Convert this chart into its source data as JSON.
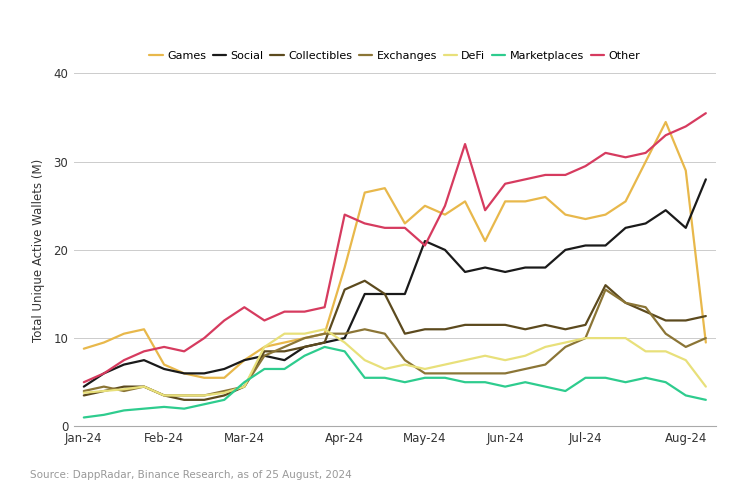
{
  "ylabel": "Total Unique Active Wallets (M)",
  "source_text": "Source: DappRadar, Binance Research, as of 25 August, 2024",
  "x_labels": [
    "Jan-24",
    "Feb-24",
    "Mar-24",
    "Apr-24",
    "May-24",
    "Jun-24",
    "Jul-24",
    "Aug-24"
  ],
  "x_ticks": [
    0,
    4,
    8,
    13,
    17,
    21,
    25,
    30
  ],
  "ylim": [
    0,
    40
  ],
  "yticks": [
    0,
    10,
    20,
    30,
    40
  ],
  "series": {
    "Games": {
      "color": "#E8B84B",
      "linewidth": 1.6,
      "data_x": [
        0,
        1,
        2,
        3,
        4,
        5,
        6,
        7,
        8,
        9,
        10,
        11,
        12,
        13,
        14,
        15,
        16,
        17,
        18,
        19,
        20,
        21,
        22,
        23,
        24,
        25,
        26,
        27,
        28,
        29,
        30,
        31
      ],
      "data_y": [
        8.8,
        9.5,
        10.5,
        11.0,
        7.0,
        6.0,
        5.5,
        5.5,
        7.5,
        9.0,
        9.5,
        10.0,
        10.5,
        18.0,
        26.5,
        27.0,
        23.0,
        25.0,
        24.0,
        25.5,
        21.0,
        25.5,
        25.5,
        26.0,
        24.0,
        23.5,
        24.0,
        25.5,
        30.0,
        34.5,
        29.0,
        9.5
      ]
    },
    "Social": {
      "color": "#1a1a1a",
      "linewidth": 1.6,
      "data_x": [
        0,
        1,
        2,
        3,
        4,
        5,
        6,
        7,
        8,
        9,
        10,
        11,
        12,
        13,
        14,
        15,
        16,
        17,
        18,
        19,
        20,
        21,
        22,
        23,
        24,
        25,
        26,
        27,
        28,
        29,
        30,
        31
      ],
      "data_y": [
        4.5,
        6.0,
        7.0,
        7.5,
        6.5,
        6.0,
        6.0,
        6.5,
        7.5,
        8.0,
        7.5,
        9.0,
        9.5,
        10.0,
        15.0,
        15.0,
        15.0,
        21.0,
        20.0,
        17.5,
        18.0,
        17.5,
        18.0,
        18.0,
        20.0,
        20.5,
        20.5,
        22.5,
        23.0,
        24.5,
        22.5,
        28.0
      ]
    },
    "Collectibles": {
      "color": "#5C4A1E",
      "linewidth": 1.6,
      "data_x": [
        0,
        1,
        2,
        3,
        4,
        5,
        6,
        7,
        8,
        9,
        10,
        11,
        12,
        13,
        14,
        15,
        16,
        17,
        18,
        19,
        20,
        21,
        22,
        23,
        24,
        25,
        26,
        27,
        28,
        29,
        30,
        31
      ],
      "data_y": [
        3.5,
        4.0,
        4.5,
        4.5,
        3.5,
        3.0,
        3.0,
        3.5,
        4.5,
        8.5,
        8.5,
        9.0,
        9.5,
        15.5,
        16.5,
        15.0,
        10.5,
        11.0,
        11.0,
        11.5,
        11.5,
        11.5,
        11.0,
        11.5,
        11.0,
        11.5,
        16.0,
        14.0,
        13.0,
        12.0,
        12.0,
        12.5
      ]
    },
    "Exchanges": {
      "color": "#8B7536",
      "linewidth": 1.6,
      "data_x": [
        0,
        1,
        2,
        3,
        4,
        5,
        6,
        7,
        8,
        9,
        10,
        11,
        12,
        13,
        14,
        15,
        16,
        17,
        18,
        19,
        20,
        21,
        22,
        23,
        24,
        25,
        26,
        27,
        28,
        29,
        30,
        31
      ],
      "data_y": [
        4.0,
        4.5,
        4.0,
        4.5,
        3.5,
        3.5,
        3.5,
        4.0,
        4.5,
        8.0,
        9.0,
        10.0,
        10.5,
        10.5,
        11.0,
        10.5,
        7.5,
        6.0,
        6.0,
        6.0,
        6.0,
        6.0,
        6.5,
        7.0,
        9.0,
        10.0,
        15.5,
        14.0,
        13.5,
        10.5,
        9.0,
        10.0
      ]
    },
    "DeFi": {
      "color": "#E8E07A",
      "linewidth": 1.6,
      "data_x": [
        0,
        1,
        2,
        3,
        4,
        5,
        6,
        7,
        8,
        9,
        10,
        11,
        12,
        13,
        14,
        15,
        16,
        17,
        18,
        19,
        20,
        21,
        22,
        23,
        24,
        25,
        26,
        27,
        28,
        29,
        30,
        31
      ],
      "data_y": [
        3.8,
        4.0,
        4.2,
        4.5,
        3.5,
        3.5,
        3.5,
        3.8,
        4.5,
        9.0,
        10.5,
        10.5,
        11.0,
        9.5,
        7.5,
        6.5,
        7.0,
        6.5,
        7.0,
        7.5,
        8.0,
        7.5,
        8.0,
        9.0,
        9.5,
        10.0,
        10.0,
        10.0,
        8.5,
        8.5,
        7.5,
        4.5
      ]
    },
    "Marketplaces": {
      "color": "#2ECC8E",
      "linewidth": 1.6,
      "data_x": [
        0,
        1,
        2,
        3,
        4,
        5,
        6,
        7,
        8,
        9,
        10,
        11,
        12,
        13,
        14,
        15,
        16,
        17,
        18,
        19,
        20,
        21,
        22,
        23,
        24,
        25,
        26,
        27,
        28,
        29,
        30,
        31
      ],
      "data_y": [
        1.0,
        1.3,
        1.8,
        2.0,
        2.2,
        2.0,
        2.5,
        3.0,
        5.0,
        6.5,
        6.5,
        8.0,
        9.0,
        8.5,
        5.5,
        5.5,
        5.0,
        5.5,
        5.5,
        5.0,
        5.0,
        4.5,
        5.0,
        4.5,
        4.0,
        5.5,
        5.5,
        5.0,
        5.5,
        5.0,
        3.5,
        3.0
      ]
    },
    "Other": {
      "color": "#D63B5F",
      "linewidth": 1.6,
      "data_x": [
        0,
        1,
        2,
        3,
        4,
        5,
        6,
        7,
        8,
        9,
        10,
        11,
        12,
        13,
        14,
        15,
        16,
        17,
        18,
        19,
        20,
        21,
        22,
        23,
        24,
        25,
        26,
        27,
        28,
        29,
        30,
        31
      ],
      "data_y": [
        5.0,
        6.0,
        7.5,
        8.5,
        9.0,
        8.5,
        10.0,
        12.0,
        13.5,
        12.0,
        13.0,
        13.0,
        13.5,
        24.0,
        23.0,
        22.5,
        22.5,
        20.5,
        25.0,
        32.0,
        24.5,
        27.5,
        28.0,
        28.5,
        28.5,
        29.5,
        31.0,
        30.5,
        31.0,
        33.0,
        34.0,
        35.5
      ]
    }
  },
  "background_color": "#ffffff",
  "grid_color": "#cccccc",
  "tick_label_color": "#333333",
  "legend_order": [
    "Games",
    "Social",
    "Collectibles",
    "Exchanges",
    "DeFi",
    "Marketplaces",
    "Other"
  ]
}
